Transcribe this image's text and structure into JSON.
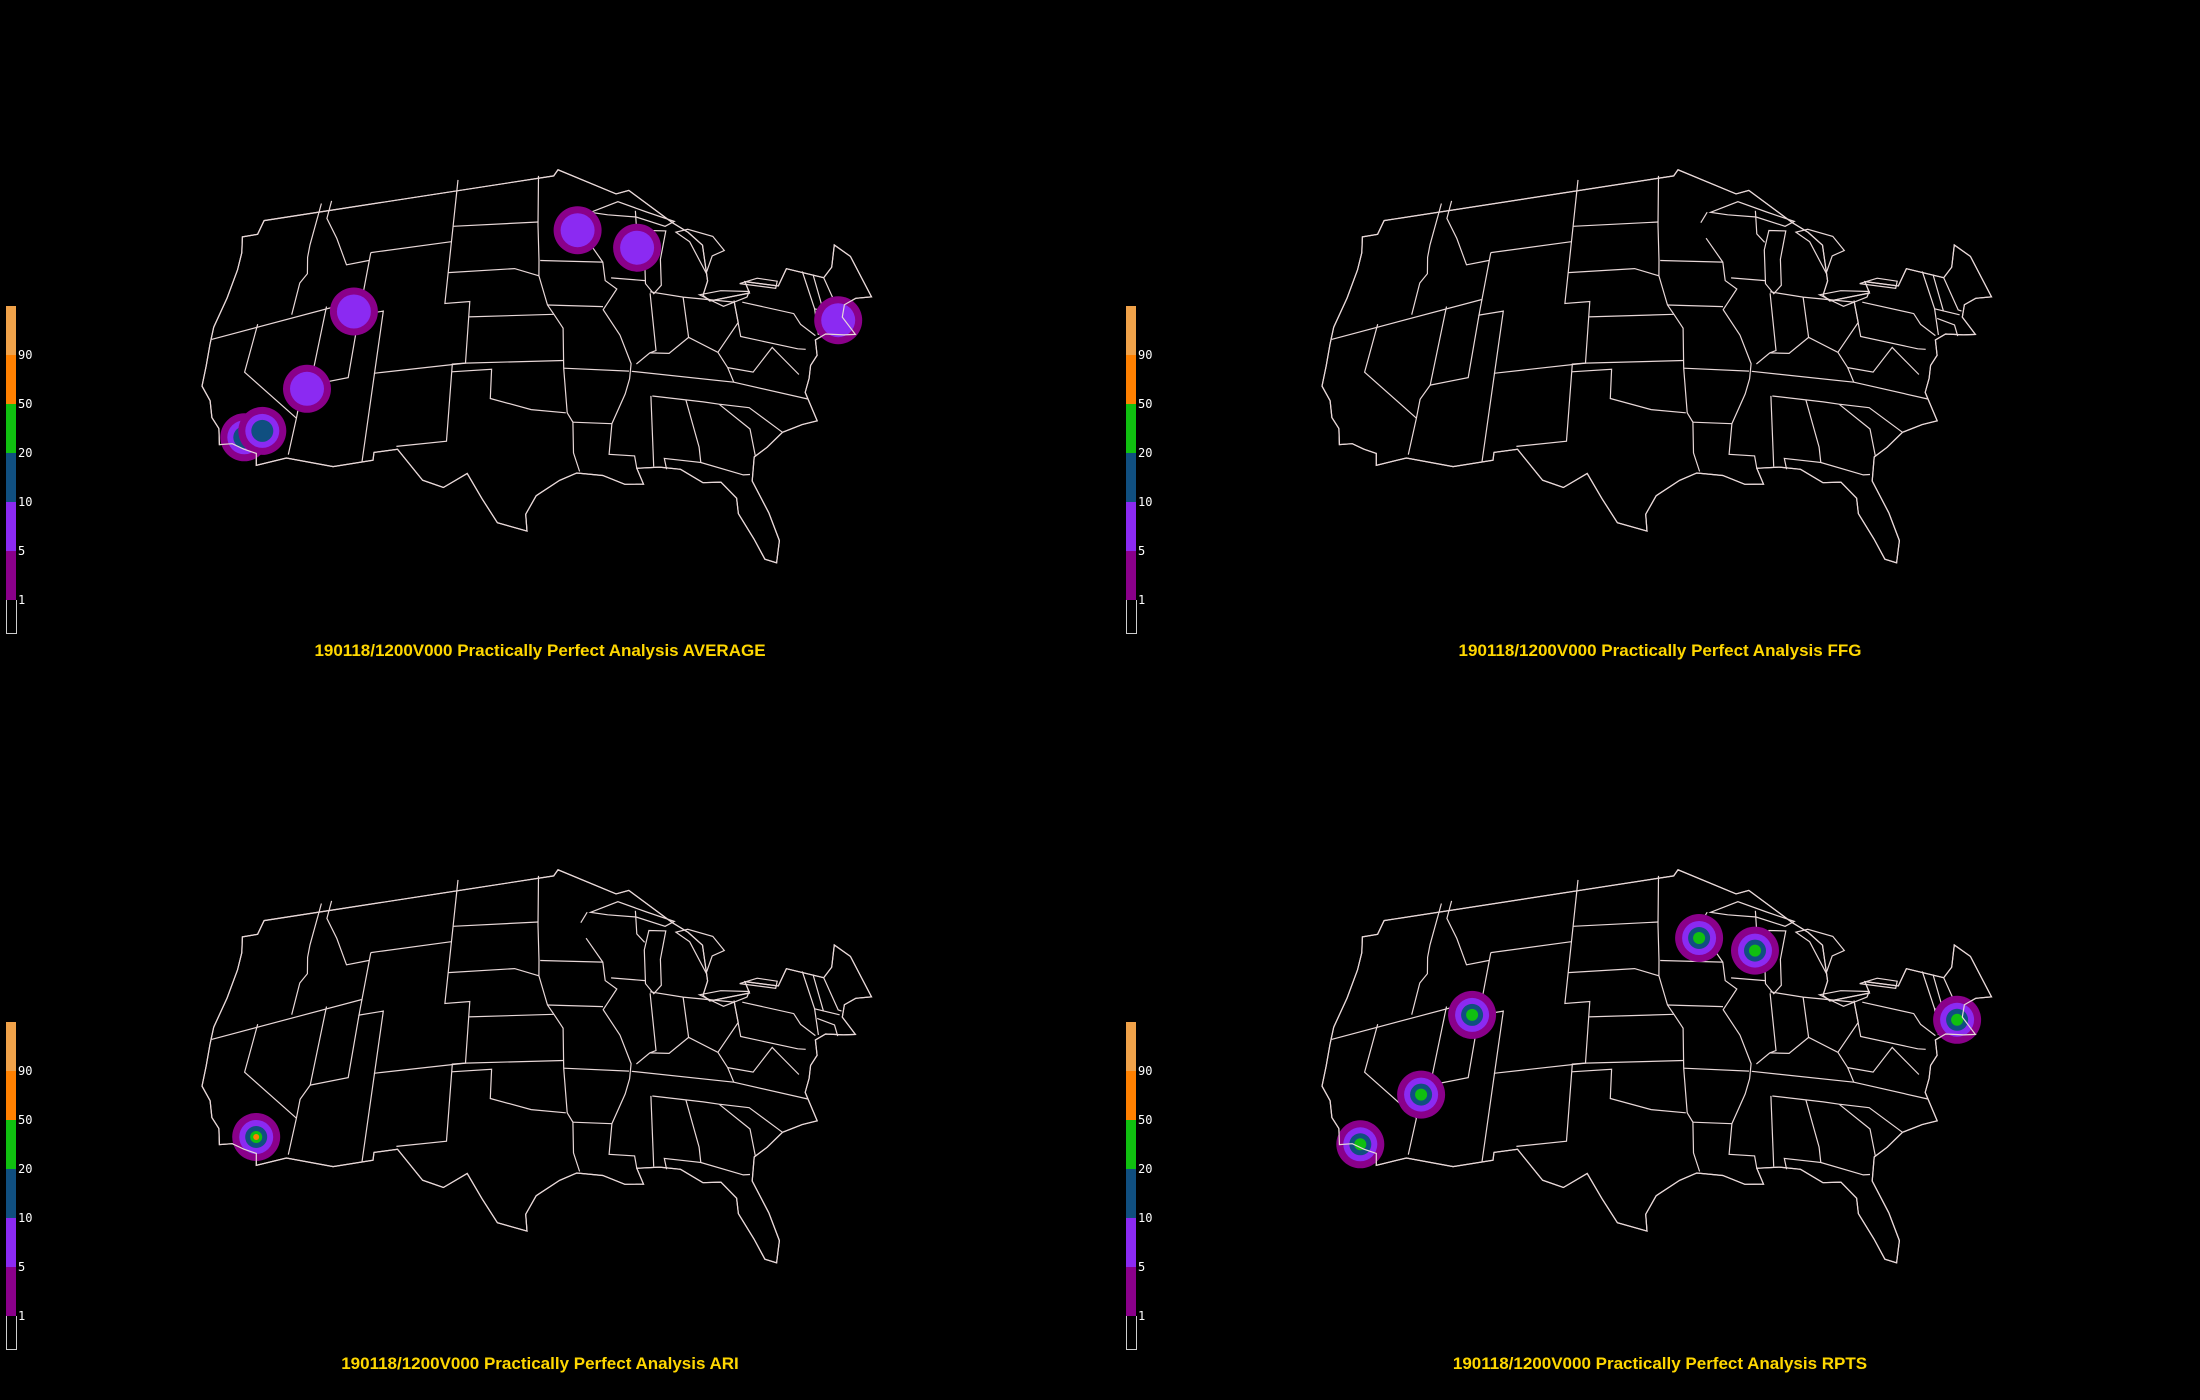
{
  "colors": {
    "background": "#000000",
    "boundary": "#e8d8d8",
    "caption": "#ffd700",
    "scale": [
      "#f0a24a",
      "#ff8000",
      "#10c010",
      "#104f80",
      "#8b2af2",
      "#8a008a"
    ]
  },
  "legend": {
    "ticks": [
      "90",
      "50",
      "20",
      "10",
      "5",
      "1"
    ]
  },
  "panels": [
    {
      "caption": "190118/1200V000 Practically Perfect Analysis AVERAGE",
      "blobs": [
        {
          "place": "Southern California",
          "lon": -118.6,
          "lat": 34.6,
          "level": 2
        },
        {
          "place": "Southern California",
          "lon": -117.2,
          "lat": 34.7,
          "level": 2
        },
        {
          "place": "Southern Nevada",
          "lon": -114.2,
          "lat": 36.8,
          "level": 1
        },
        {
          "place": "Northern Utah",
          "lon": -111.5,
          "lat": 41.3,
          "level": 1
        },
        {
          "place": "Minnesota",
          "lon": -93.2,
          "lat": 45.5,
          "level": 1
        },
        {
          "place": "Wisconsin",
          "lon": -88.2,
          "lat": 44.6,
          "level": 1
        },
        {
          "place": "Massachusetts",
          "lon": -71.3,
          "lat": 42.4,
          "level": 1
        }
      ]
    },
    {
      "caption": "190118/1200V000 Practically Perfect Analysis FFG",
      "blobs": []
    },
    {
      "caption": "190118/1200V000 Practically Perfect Analysis ARI",
      "blobs": [
        {
          "place": "Southern California",
          "lon": -117.6,
          "lat": 34.4,
          "level": 4
        }
      ]
    },
    {
      "caption": "190118/1200V000 Practically Perfect Analysis RPTS",
      "blobs": [
        {
          "place": "Southern California",
          "lon": -118.8,
          "lat": 34.2,
          "level": 3
        },
        {
          "place": "Southern Nevada",
          "lon": -114.6,
          "lat": 36.5,
          "level": 3
        },
        {
          "place": "Northern Utah",
          "lon": -111.6,
          "lat": 41.1,
          "level": 3
        },
        {
          "place": "Minnesota",
          "lon": -93.1,
          "lat": 45.0,
          "level": 3
        },
        {
          "place": "Wisconsin",
          "lon": -88.4,
          "lat": 44.4,
          "level": 3
        },
        {
          "place": "Massachusetts",
          "lon": -71.4,
          "lat": 42.4,
          "level": 3
        }
      ]
    }
  ]
}
